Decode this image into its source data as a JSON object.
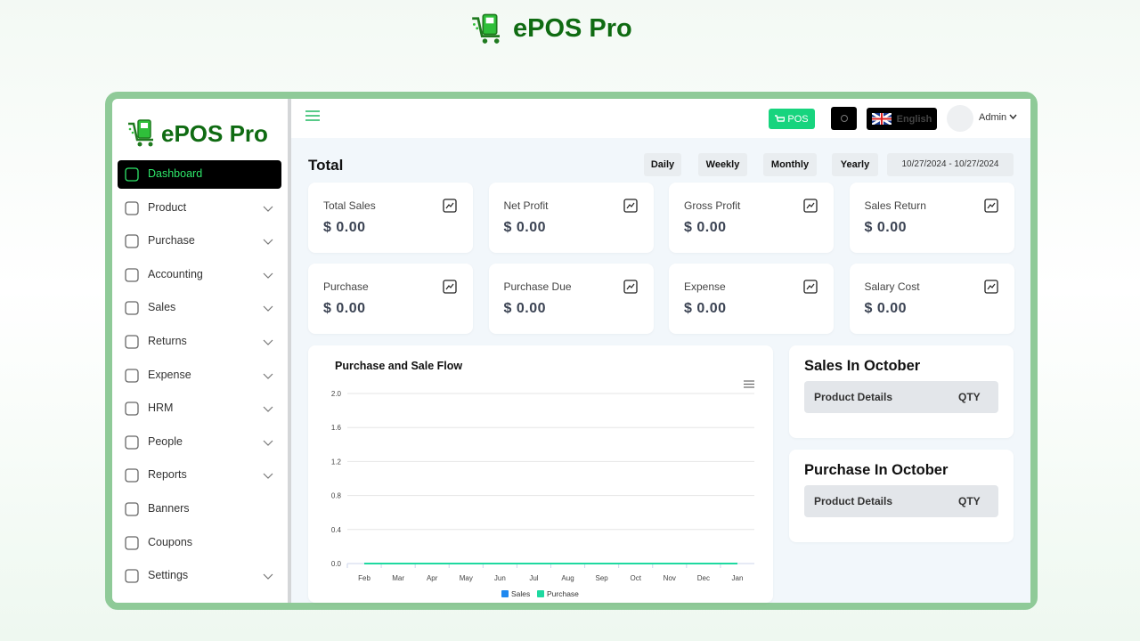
{
  "brand": "ePOS Pro",
  "sidebar": {
    "brand": "ePOS Pro",
    "menu": [
      "Dashboard",
      "Product",
      "Purchase",
      "Accounting",
      "Sales",
      "Returns",
      "Expense",
      "HRM",
      "People",
      "Reports",
      "Banners",
      "Coupons",
      "Settings"
    ]
  },
  "topbar": {
    "pos": "POS",
    "language": "English",
    "user": "Admin"
  },
  "dashboard": {
    "title": "Total",
    "filters": [
      "Daily",
      "Weekly",
      "Monthly",
      "Yearly"
    ],
    "date_range": "10/27/2024 - 10/27/2024",
    "cards": [
      {
        "label": "Total Sales",
        "value": "$ 0.00"
      },
      {
        "label": "Net Profit",
        "value": "$ 0.00"
      },
      {
        "label": "Gross Profit",
        "value": "$ 0.00"
      },
      {
        "label": "Sales Return",
        "value": "$ 0.00"
      },
      {
        "label": "Purchase",
        "value": "$ 0.00"
      },
      {
        "label": "Purchase Due",
        "value": "$ 0.00"
      },
      {
        "label": "Expense",
        "value": "$ 0.00"
      },
      {
        "label": "Salary Cost",
        "value": "$ 0.00"
      }
    ]
  },
  "chart_data": {
    "type": "line",
    "title": "Purchase and Sale Flow",
    "categories": [
      "Feb",
      "Mar",
      "Apr",
      "May",
      "Jun",
      "Jul",
      "Aug",
      "Sep",
      "Oct",
      "Nov",
      "Dec",
      "Jan"
    ],
    "series": [
      {
        "name": "Sales",
        "color": "#1e88f0",
        "values": [
          0,
          0,
          0,
          0,
          0,
          0,
          0,
          0,
          0,
          0,
          0,
          0
        ]
      },
      {
        "name": "Purchase",
        "color": "#1ed9a0",
        "values": [
          0,
          0,
          0,
          0,
          0,
          0,
          0,
          0,
          0,
          0,
          0,
          0
        ]
      }
    ],
    "ylim": [
      0,
      2
    ],
    "yticks": [
      {
        "value": 0,
        "label": "0.0"
      },
      0.4,
      0.8,
      1.2,
      1.6,
      {
        "value": 2,
        "label": "2.0"
      }
    ],
    "grid": true
  },
  "panels": [
    {
      "title": "Sales In October",
      "columns": [
        "Product Details",
        "QTY"
      ]
    },
    {
      "title": "Purchase In October",
      "columns": [
        "Product Details",
        "QTY"
      ]
    }
  ]
}
